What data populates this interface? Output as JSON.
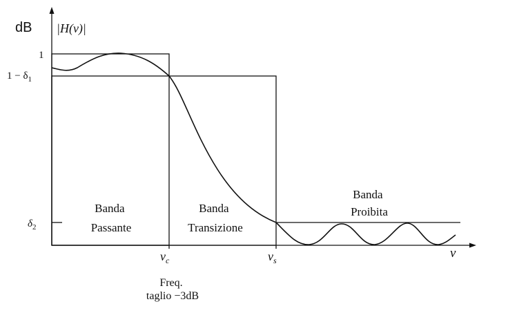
{
  "unit_label": "dB",
  "y_axis_label": "|H(ν)|",
  "x_axis_label": "ν",
  "y_ticks": {
    "one": "1",
    "one_minus_delta1": "1 − δ",
    "one_minus_delta1_sub": "1",
    "delta2": "δ",
    "delta2_sub": "2"
  },
  "x_ticks": {
    "nu_c": "ν",
    "nu_c_sub": "c",
    "nu_s": "ν",
    "nu_s_sub": "s"
  },
  "regions": {
    "passband": [
      "Banda",
      "Passante"
    ],
    "transition": [
      "Banda",
      "Transizione"
    ],
    "stopband": [
      "Banda",
      "Proibita"
    ]
  },
  "cutoff_note": [
    "Freq.",
    "taglio −3dB"
  ]
}
